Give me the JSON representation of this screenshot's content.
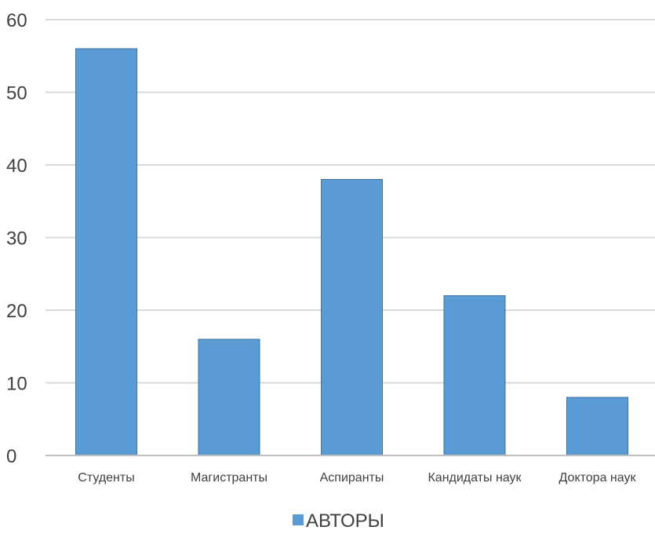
{
  "chart_data": {
    "type": "bar",
    "categories": [
      "Студенты",
      "Магистранты",
      "Аспиранты",
      "Кандидаты наук",
      "Доктора наук"
    ],
    "series": [
      {
        "name": "АВТОРЫ",
        "values": [
          56,
          16,
          38,
          22,
          8
        ],
        "color": "#5B9BD5"
      }
    ],
    "ylim": [
      0,
      60
    ],
    "yticks": [
      "0",
      "10",
      "20",
      "30",
      "40",
      "50",
      "60"
    ],
    "grid": true,
    "legend_position": "bottom",
    "colors": {
      "bar_fill": "#5B9BD5",
      "bar_stroke": "#41719C",
      "grid": "#D9D9D9",
      "axis": "#BFBFBF",
      "text": "#404040"
    }
  }
}
